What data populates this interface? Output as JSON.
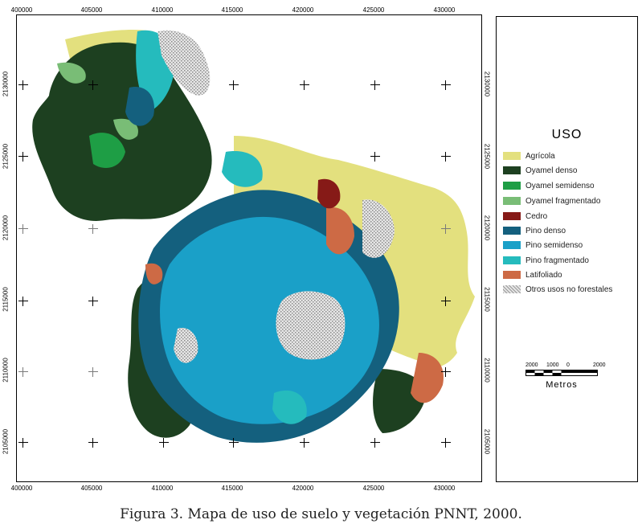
{
  "map": {
    "x_ticks": [
      "400000",
      "405000",
      "410000",
      "415000",
      "420000",
      "425000",
      "430000"
    ],
    "y_ticks": [
      "2130000",
      "2125000",
      "2120000",
      "2115000",
      "2110000",
      "2105000"
    ]
  },
  "legend": {
    "title": "USO",
    "items": [
      {
        "label": "Agrícola",
        "color": "#e3e07e"
      },
      {
        "label": "Oyamel denso",
        "color": "#1d4020"
      },
      {
        "label": "Oyamel semidenso",
        "color": "#1e9e45"
      },
      {
        "label": "Oyamel fragmentado",
        "color": "#79bd76"
      },
      {
        "label": "Cedro",
        "color": "#861a17"
      },
      {
        "label": "Pino denso",
        "color": "#14607e"
      },
      {
        "label": "Pino semidenso",
        "color": "#1aa0c8"
      },
      {
        "label": "Pino fragmentado",
        "color": "#25bbbd"
      },
      {
        "label": "Latifoliado",
        "color": "#cd6a45"
      },
      {
        "label": "Otros usos no forestales",
        "color": "#c8c8c8"
      }
    ]
  },
  "scale": {
    "numbers": [
      "2000",
      "1000",
      "0",
      "2000"
    ],
    "unit": "Metros"
  },
  "caption": "Figura 3. Mapa de uso de suelo y vegetación PNNT, 2000."
}
